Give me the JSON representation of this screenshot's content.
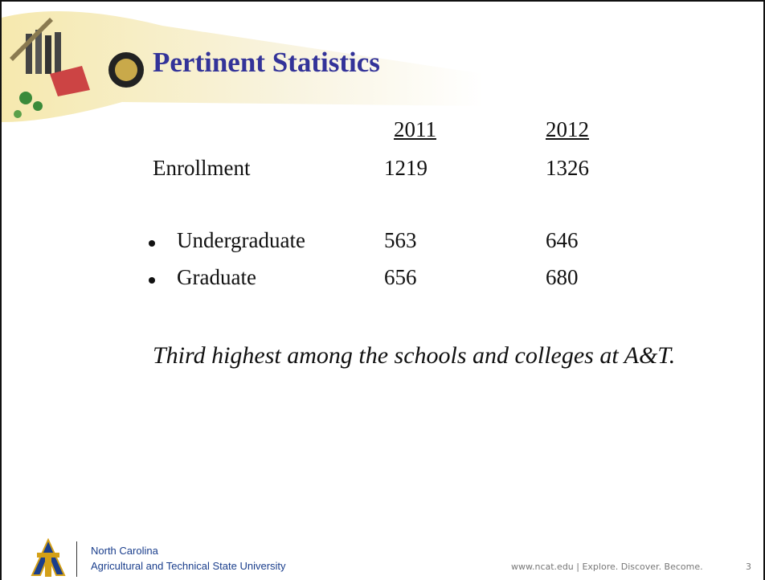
{
  "header": {
    "title": "Pertinent Statistics"
  },
  "table": {
    "columns": [
      2011,
      2012
    ],
    "rows": [
      {
        "label": "Enrollment",
        "values": [
          1219,
          1326
        ]
      },
      {
        "label": "Undergraduate",
        "values": [
          563,
          646
        ]
      },
      {
        "label": "Graduate",
        "values": [
          656,
          680
        ]
      }
    ]
  },
  "note": "Third highest among the schools and colleges at A&T.",
  "footer": {
    "university": [
      "North Carolina",
      "Agricultural and Technical State University"
    ],
    "tagline": "www.ncat.edu | Explore. Discover. Become.",
    "page": "3"
  }
}
